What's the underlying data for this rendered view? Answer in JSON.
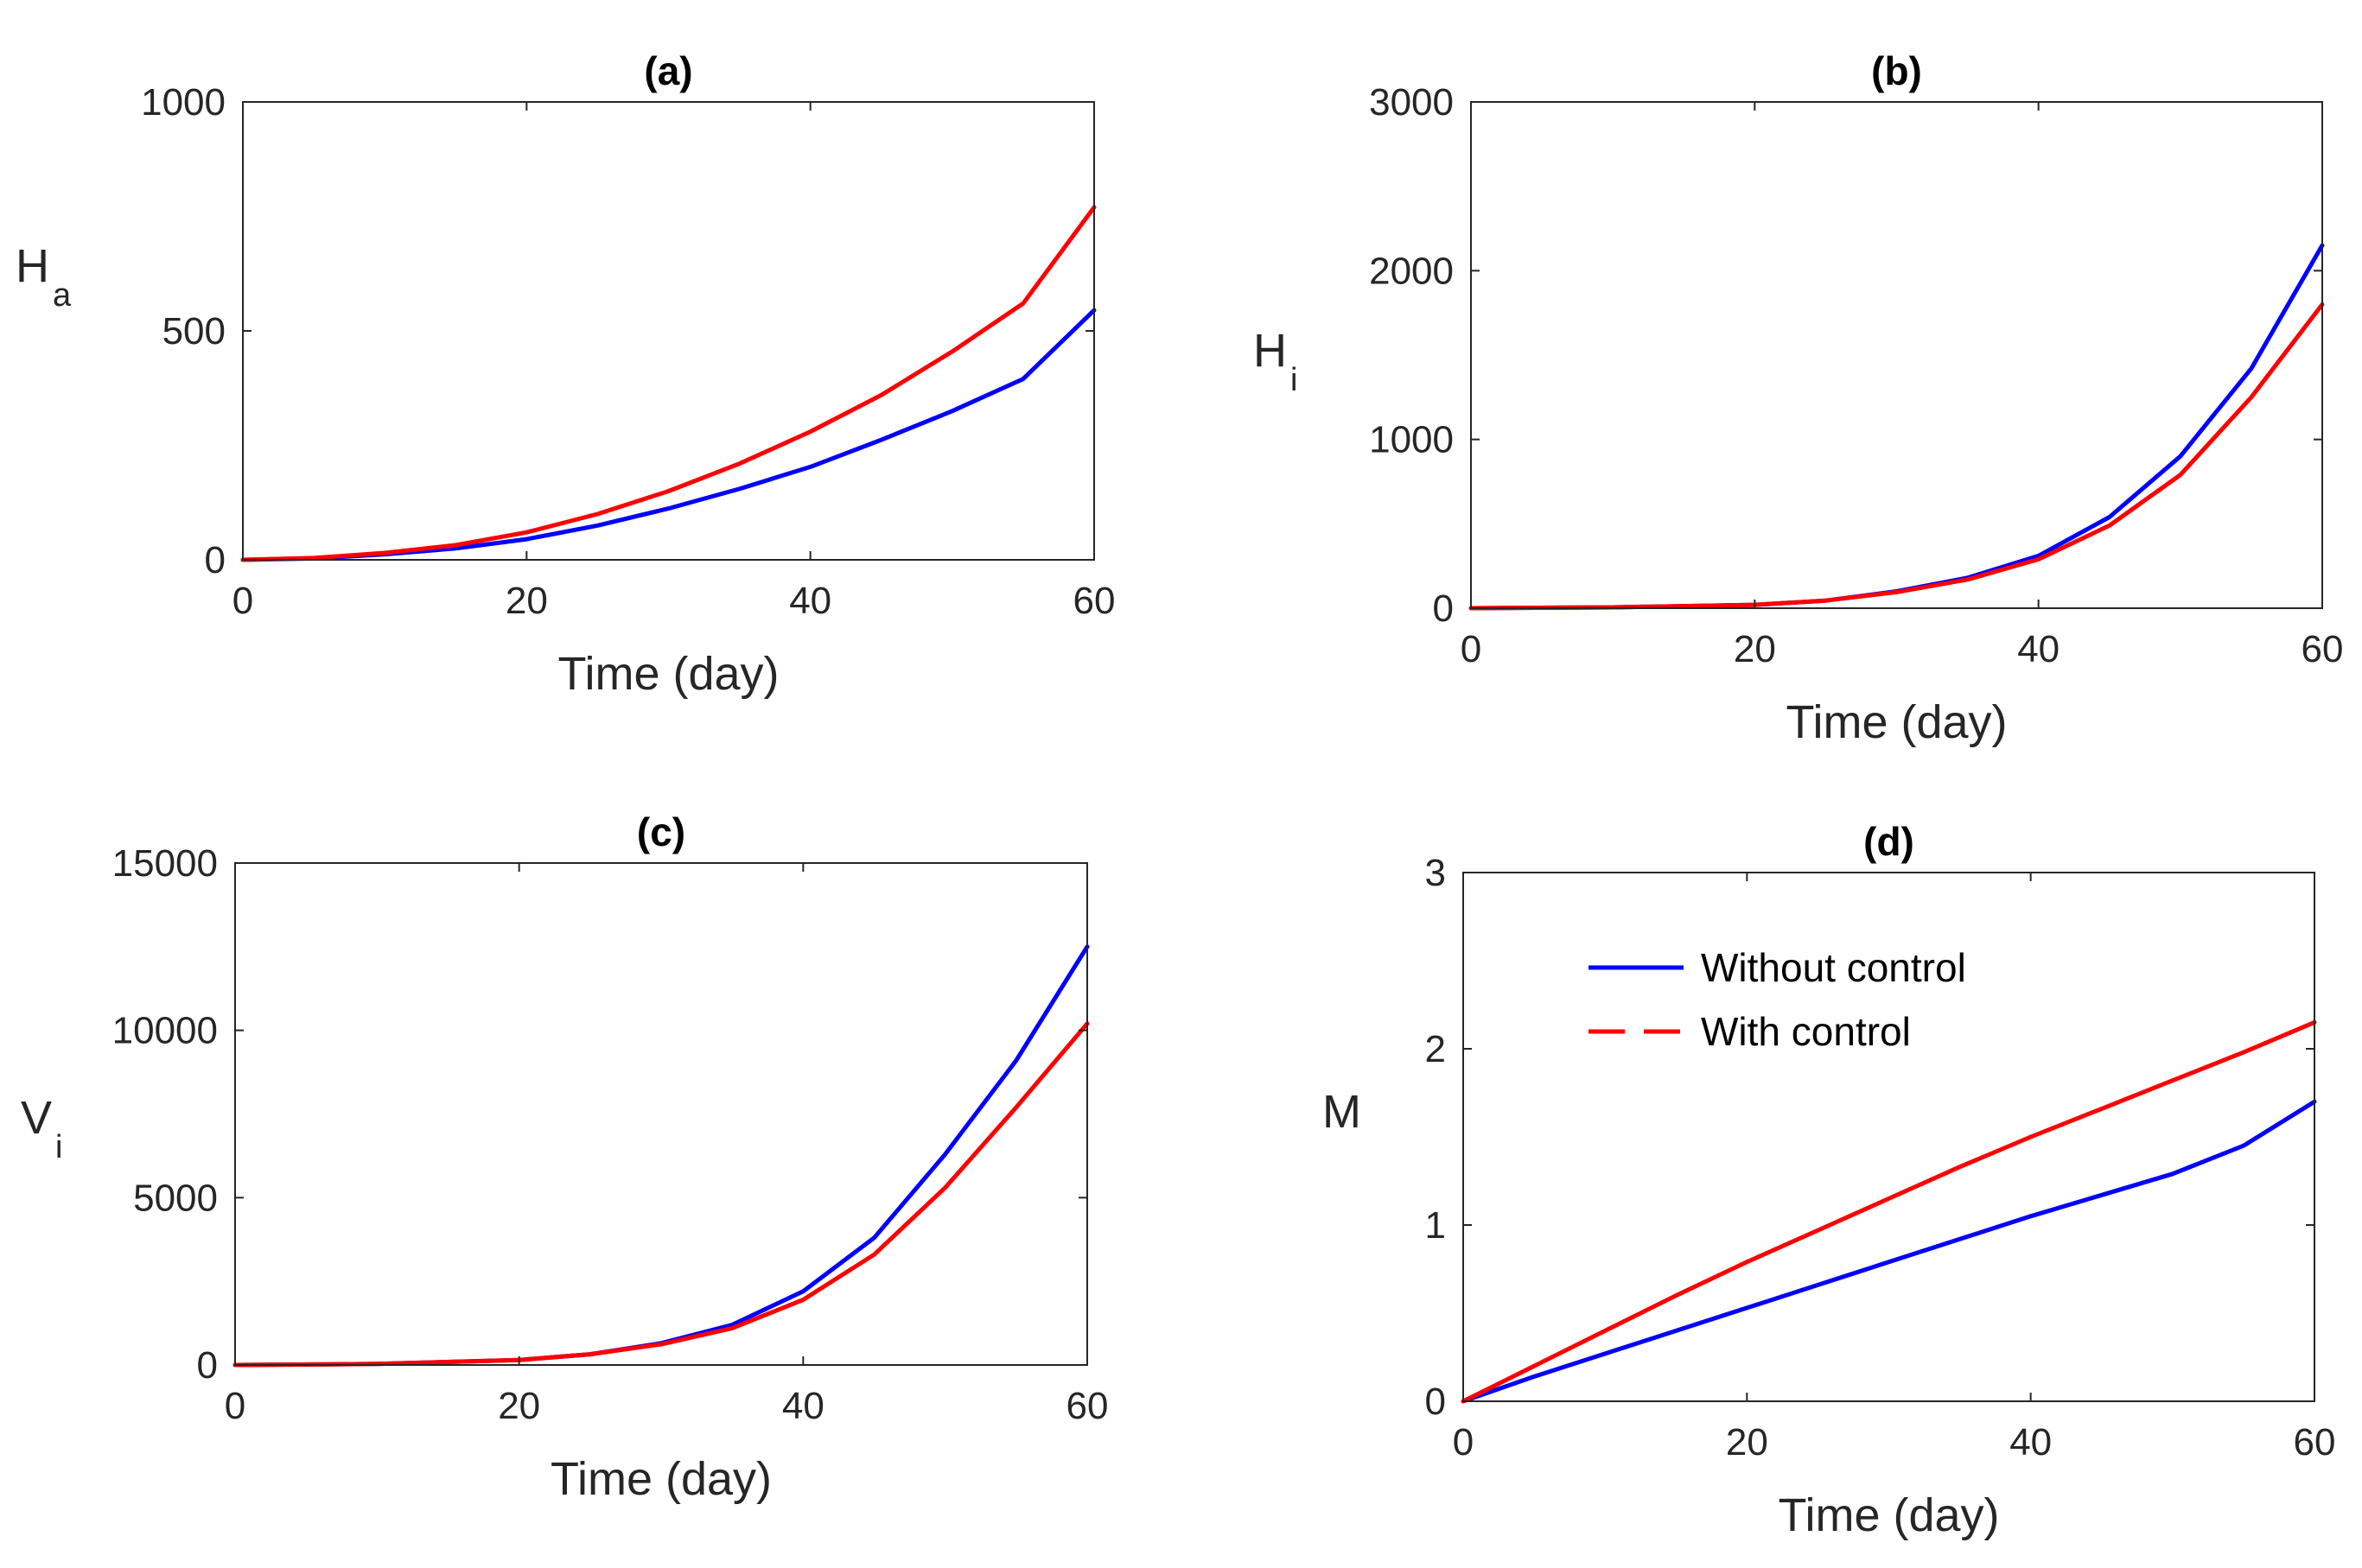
{
  "colors": {
    "without": "#0000ff",
    "with": "#ff0000",
    "axis": "#262626"
  },
  "legend": {
    "panel": 3,
    "location": "upper-left",
    "entries": [
      {
        "label": "Without control",
        "color": "#0000ff",
        "style": "solid"
      },
      {
        "label": "With control",
        "color": "#ff0000",
        "style": "dashed"
      }
    ]
  },
  "chart_data": [
    {
      "type": "line",
      "title": "(a)",
      "xlabel": "Time (day)",
      "ylabel": {
        "main": "H",
        "sub": "a"
      },
      "xlim": [
        0,
        60
      ],
      "ylim": [
        0,
        1000
      ],
      "xticks": [
        0,
        20,
        40,
        60
      ],
      "yticks": [
        0,
        500,
        1000
      ],
      "series": [
        {
          "name": "Without control",
          "color": "#0000ff",
          "x": [
            0,
            5,
            10,
            15,
            20,
            25,
            30,
            35,
            40,
            45,
            50,
            55,
            60
          ],
          "y": [
            0,
            3,
            12,
            25,
            45,
            75,
            112,
            155,
            203,
            262,
            325,
            395,
            545
          ]
        },
        {
          "name": "With control",
          "color": "#ff0000",
          "x": [
            0,
            5,
            10,
            15,
            20,
            25,
            30,
            35,
            40,
            45,
            50,
            55,
            60
          ],
          "y": [
            0,
            4,
            15,
            32,
            60,
            100,
            150,
            210,
            280,
            360,
            455,
            560,
            770
          ]
        }
      ]
    },
    {
      "type": "line",
      "title": "(b)",
      "xlabel": "Time (day)",
      "ylabel": {
        "main": "H",
        "sub": "i"
      },
      "xlim": [
        0,
        60
      ],
      "ylim": [
        0,
        3000
      ],
      "xticks": [
        0,
        20,
        40,
        60
      ],
      "yticks": [
        0,
        1000,
        2000,
        3000
      ],
      "series": [
        {
          "name": "Without control",
          "color": "#0000ff",
          "x": [
            0,
            10,
            20,
            25,
            30,
            35,
            40,
            45,
            50,
            55,
            60
          ],
          "y": [
            0,
            5,
            20,
            45,
            100,
            180,
            310,
            540,
            900,
            1420,
            2150
          ]
        },
        {
          "name": "With control",
          "color": "#ff0000",
          "x": [
            0,
            10,
            20,
            25,
            30,
            35,
            40,
            45,
            50,
            55,
            60
          ],
          "y": [
            0,
            5,
            20,
            45,
            95,
            170,
            290,
            490,
            790,
            1250,
            1800
          ]
        }
      ]
    },
    {
      "type": "line",
      "title": "(c)",
      "xlabel": "Time (day)",
      "ylabel": {
        "main": "V",
        "sub": "i"
      },
      "xlim": [
        0,
        60
      ],
      "ylim": [
        0,
        15000
      ],
      "xticks": [
        0,
        20,
        40,
        60
      ],
      "yticks": [
        0,
        5000,
        10000,
        15000
      ],
      "series": [
        {
          "name": "Without control",
          "color": "#0000ff",
          "x": [
            0,
            10,
            20,
            25,
            30,
            35,
            40,
            45,
            50,
            55,
            60
          ],
          "y": [
            0,
            30,
            150,
            320,
            650,
            1200,
            2200,
            3800,
            6300,
            9100,
            12500
          ]
        },
        {
          "name": "With control",
          "color": "#ff0000",
          "x": [
            0,
            10,
            20,
            25,
            30,
            35,
            40,
            45,
            50,
            55,
            60
          ],
          "y": [
            0,
            30,
            150,
            320,
            620,
            1100,
            1950,
            3300,
            5300,
            7700,
            10200
          ]
        }
      ]
    },
    {
      "type": "line",
      "title": "(d)",
      "xlabel": "Time (day)",
      "ylabel": {
        "main": "M",
        "sub": ""
      },
      "xlim": [
        0,
        60
      ],
      "ylim": [
        0,
        3
      ],
      "xticks": [
        0,
        20,
        40,
        60
      ],
      "yticks": [
        0,
        1,
        2,
        3
      ],
      "series": [
        {
          "name": "Without control",
          "color": "#0000ff",
          "x": [
            0,
            5,
            10,
            15,
            20,
            25,
            30,
            35,
            40,
            45,
            50,
            55,
            60
          ],
          "y": [
            0,
            0.14,
            0.27,
            0.4,
            0.53,
            0.66,
            0.79,
            0.92,
            1.05,
            1.17,
            1.29,
            1.45,
            1.7
          ]
        },
        {
          "name": "With control",
          "color": "#ff0000",
          "x": [
            0,
            5,
            10,
            15,
            20,
            25,
            30,
            35,
            40,
            45,
            50,
            55,
            60
          ],
          "y": [
            0,
            0.2,
            0.4,
            0.6,
            0.79,
            0.97,
            1.15,
            1.33,
            1.5,
            1.66,
            1.82,
            1.98,
            2.15
          ]
        }
      ]
    }
  ]
}
